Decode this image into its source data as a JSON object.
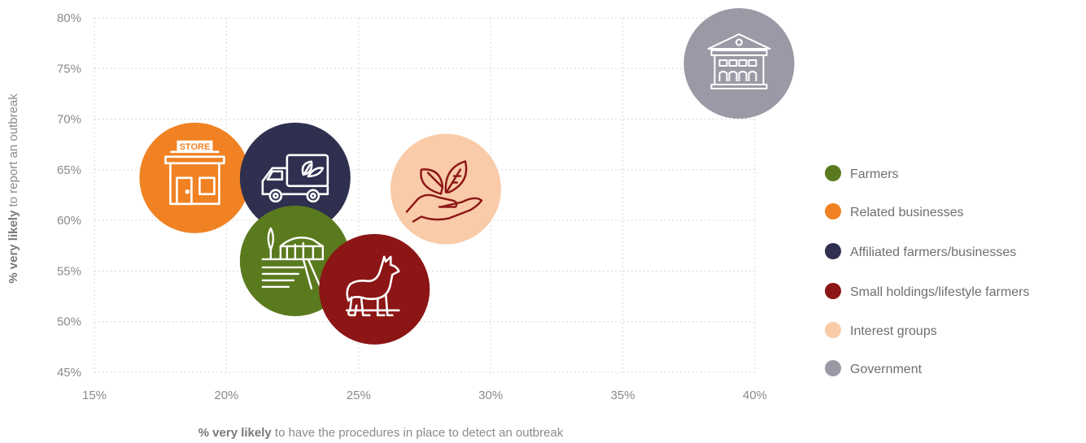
{
  "chart_data": {
    "type": "scatter",
    "title": "",
    "xlabel_bold": "% very likely",
    "xlabel_rest": " to have the procedures in place to detect an outbreak",
    "ylabel_bold": "% very likely",
    "ylabel_rest": " to report an outbreak",
    "xlim": [
      15,
      40
    ],
    "ylim": [
      45,
      80
    ],
    "x_ticks": [
      "15%",
      "20%",
      "25%",
      "30%",
      "35%",
      "40%"
    ],
    "y_ticks": [
      "45%",
      "50%",
      "55%",
      "60%",
      "65%",
      "70%",
      "75%",
      "80%"
    ],
    "grid": true,
    "legend_position": "right",
    "series": [
      {
        "name": "Farmers",
        "color": "#5a7a1e",
        "icon": "greenhouse-farm-icon",
        "x": 22.6,
        "y": 56.0
      },
      {
        "name": "Related businesses",
        "color": "#f08223",
        "icon": "store-icon",
        "x": 18.8,
        "y": 64.2
      },
      {
        "name": "Affiliated farmers/businesses",
        "color": "#2f2f4f",
        "icon": "delivery-truck-icon",
        "x": 22.6,
        "y": 64.2
      },
      {
        "name": "Small holdings/lifestyle farmers",
        "color": "#8c1515",
        "icon": "alpaca-icon",
        "x": 25.6,
        "y": 53.2
      },
      {
        "name": "Interest groups",
        "color": "#f9cba8",
        "icon": "hand-leaves-icon",
        "x": 28.3,
        "y": 63.1
      },
      {
        "name": "Government",
        "color": "#9a9aa6",
        "icon": "government-building-icon",
        "x": 39.4,
        "y": 75.5
      }
    ]
  }
}
